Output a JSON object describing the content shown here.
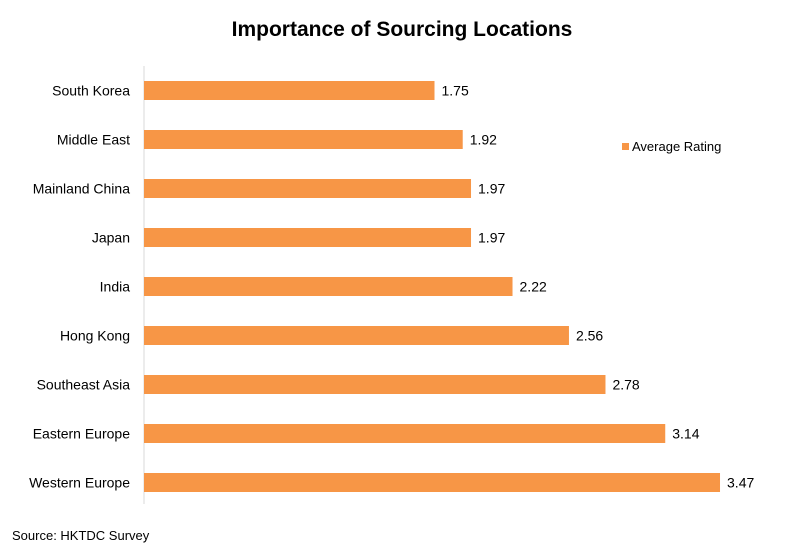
{
  "chart_data": {
    "type": "bar",
    "orientation": "horizontal",
    "title": "Importance of Sourcing Locations",
    "categories": [
      "South Korea",
      "Middle East",
      "Mainland China",
      "Japan",
      "India",
      "Hong Kong",
      "Southeast Asia",
      "Eastern Europe",
      "Western Europe"
    ],
    "series": [
      {
        "name": "Average Rating",
        "color": "#F79646",
        "values": [
          1.75,
          1.92,
          1.97,
          1.97,
          2.22,
          2.56,
          2.78,
          3.14,
          3.47
        ],
        "value_labels": [
          "1.75",
          "1.92",
          "1.97",
          "1.97",
          "2.22",
          "2.56",
          "2.78",
          "3.14",
          "3.47"
        ]
      }
    ],
    "xlim": [
      0,
      3.6
    ],
    "grid": false,
    "legend_position": "right"
  },
  "source": "Source: HKTDC Survey"
}
